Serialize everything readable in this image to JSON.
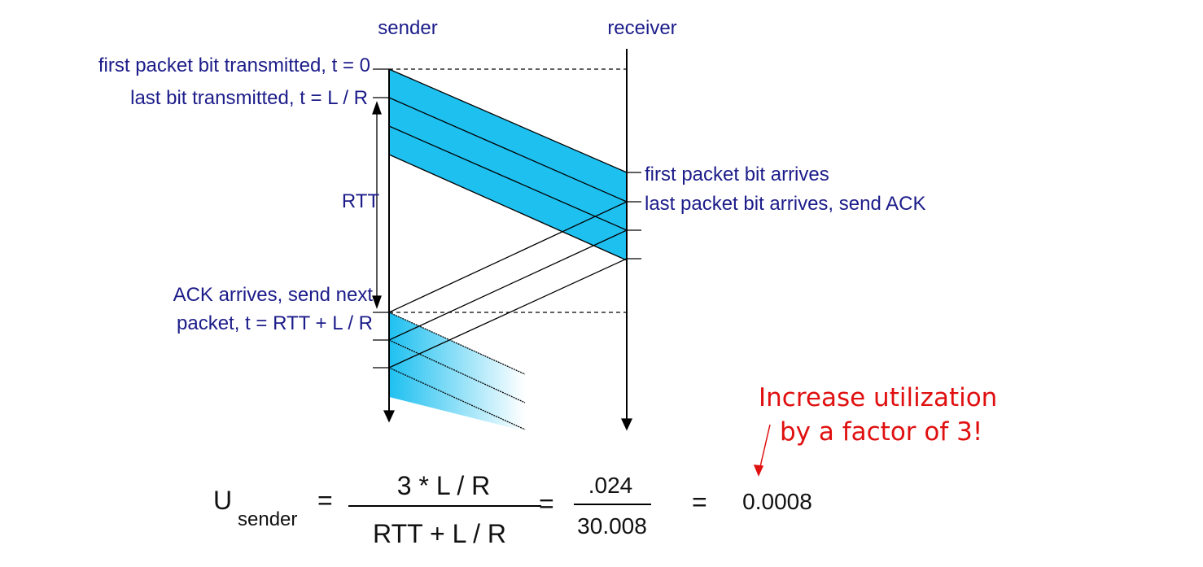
{
  "header": {
    "sender": "sender",
    "receiver": "receiver"
  },
  "sender_labels": [
    "first packet bit transmitted, t = 0",
    "last bit transmitted, t = L / R",
    "RTT",
    "ACK arrives, send next",
    "packet, t = RTT + L / R"
  ],
  "receiver_labels": [
    "first packet bit arrives",
    "last packet bit arrives, send ACK"
  ],
  "annotation": [
    "Increase utilization",
    "by a factor of 3!"
  ],
  "formula": {
    "symbol": "U",
    "subscript": "sender",
    "equals": "=",
    "numerator": "3 * L / R",
    "denominator": "RTT + L / R",
    "value_numerator": ".024",
    "value_denominator": "30.008",
    "result": "0.0008"
  }
}
